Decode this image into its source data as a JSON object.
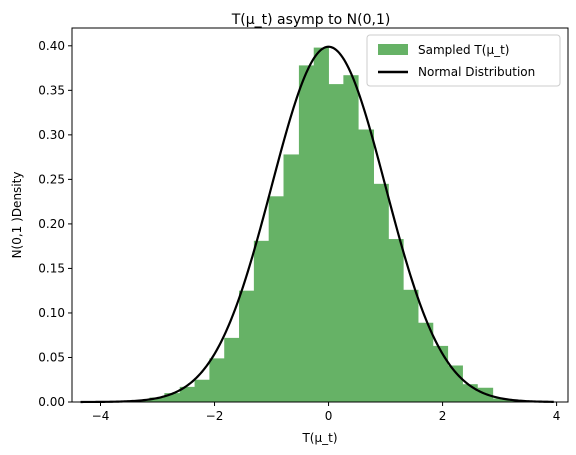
{
  "chart_data": {
    "type": "bar",
    "title": "T(μ_t) asymp to N(0,1)",
    "xlabel": "T(μ_t)",
    "ylabel": "N(0,1 )Density",
    "xlim": [
      -4.5,
      4.2
    ],
    "ylim": [
      0.0,
      0.42
    ],
    "xticks": [
      -4,
      -2,
      0,
      2,
      4
    ],
    "xtick_labels": [
      "−4",
      "−2",
      "0",
      "2",
      "4"
    ],
    "yticks": [
      0.0,
      0.05,
      0.1,
      0.15,
      0.2,
      0.25,
      0.3,
      0.35,
      0.4
    ],
    "ytick_labels": [
      "0.00",
      "0.05",
      "0.10",
      "0.15",
      "0.20",
      "0.25",
      "0.30",
      "0.35",
      "0.40"
    ],
    "grid": false,
    "legend_position": "top-right",
    "series": [
      {
        "name": "Sampled T(μ_t)",
        "kind": "histogram",
        "color": "#66b266",
        "bins": [
          {
            "x0": -3.41,
            "x1": -3.14,
            "value": 0.002
          },
          {
            "x0": -3.14,
            "x1": -2.88,
            "value": 0.005
          },
          {
            "x0": -2.88,
            "x1": -2.61,
            "value": 0.01
          },
          {
            "x0": -2.61,
            "x1": -2.35,
            "value": 0.017
          },
          {
            "x0": -2.35,
            "x1": -2.09,
            "value": 0.025
          },
          {
            "x0": -2.09,
            "x1": -1.83,
            "value": 0.049
          },
          {
            "x0": -1.83,
            "x1": -1.57,
            "value": 0.072
          },
          {
            "x0": -1.57,
            "x1": -1.31,
            "value": 0.125
          },
          {
            "x0": -1.31,
            "x1": -1.05,
            "value": 0.181
          },
          {
            "x0": -1.05,
            "x1": -0.79,
            "value": 0.231
          },
          {
            "x0": -0.79,
            "x1": -0.52,
            "value": 0.278
          },
          {
            "x0": -0.52,
            "x1": -0.26,
            "value": 0.378
          },
          {
            "x0": -0.26,
            "x1": 0.0,
            "value": 0.398
          },
          {
            "x0": 0.0,
            "x1": 0.26,
            "value": 0.357
          },
          {
            "x0": 0.26,
            "x1": 0.52,
            "value": 0.367
          },
          {
            "x0": 0.52,
            "x1": 0.79,
            "value": 0.306
          },
          {
            "x0": 0.79,
            "x1": 1.05,
            "value": 0.245
          },
          {
            "x0": 1.05,
            "x1": 1.31,
            "value": 0.183
          },
          {
            "x0": 1.31,
            "x1": 1.57,
            "value": 0.126
          },
          {
            "x0": 1.57,
            "x1": 1.83,
            "value": 0.089
          },
          {
            "x0": 1.83,
            "x1": 2.09,
            "value": 0.063
          },
          {
            "x0": 2.09,
            "x1": 2.35,
            "value": 0.041
          },
          {
            "x0": 2.35,
            "x1": 2.61,
            "value": 0.02
          },
          {
            "x0": 2.61,
            "x1": 2.88,
            "value": 0.016
          },
          {
            "x0": 2.88,
            "x1": 3.14,
            "value": 0.004
          },
          {
            "x0": 3.14,
            "x1": 3.41,
            "value": 0.002
          }
        ]
      },
      {
        "name": "Normal Distribution",
        "kind": "line",
        "color": "#000000",
        "function": "standard normal pdf",
        "x_range": [
          -4.35,
          3.95
        ]
      }
    ]
  }
}
